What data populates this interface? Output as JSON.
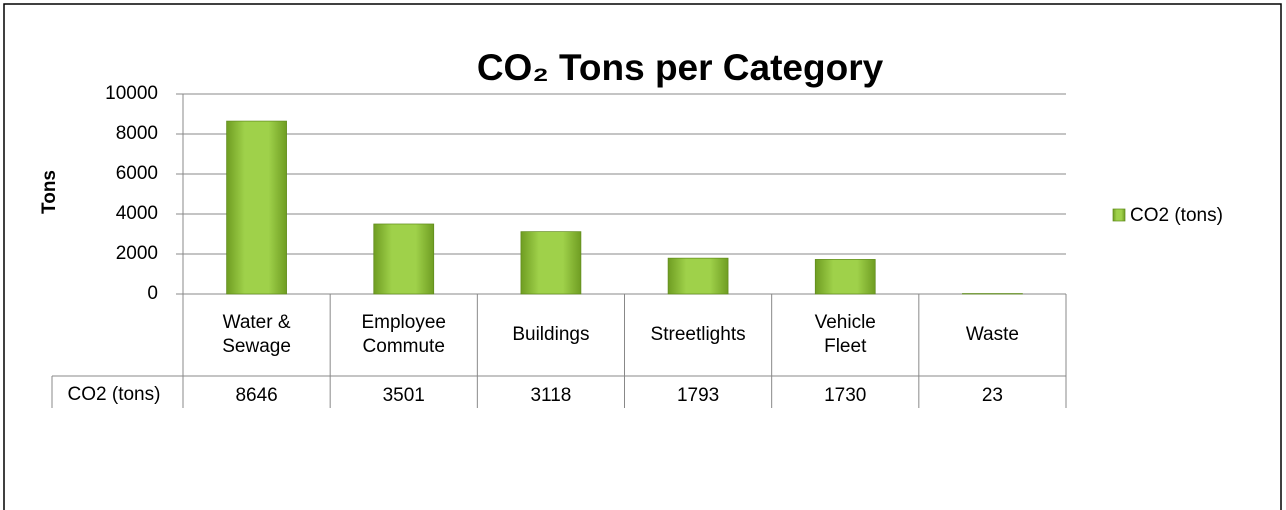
{
  "chart_data": {
    "type": "bar",
    "title": "CO₂ Tons per Category",
    "ylabel": "Tons",
    "categories": [
      "Water & Sewage",
      "Employee Commute",
      "Buildings",
      "Streetlights",
      "Vehicle Fleet",
      "Waste"
    ],
    "series": [
      {
        "name": "CO2 (tons)",
        "color": "#8cc63f",
        "values": [
          8646,
          3501,
          3118,
          1793,
          1730,
          23
        ]
      }
    ],
    "ylim": [
      0,
      10000
    ],
    "yticks": [
      0,
      2000,
      4000,
      6000,
      8000,
      10000
    ],
    "grid": true,
    "legend": "right",
    "data_table": true
  }
}
